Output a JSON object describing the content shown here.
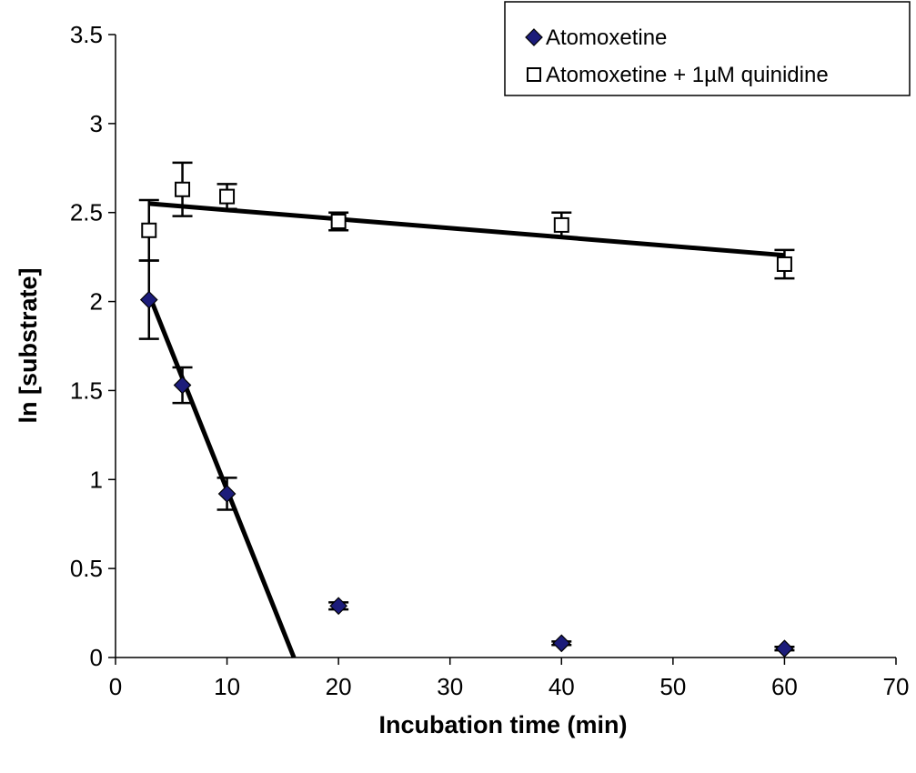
{
  "chart_data": {
    "type": "scatter",
    "title": "",
    "xlabel": "Incubation time (min)",
    "ylabel": "ln [substrate]",
    "xlim": [
      0,
      70
    ],
    "ylim": [
      0,
      3.5
    ],
    "x_ticks": [
      "0",
      "10",
      "20",
      "30",
      "40",
      "50",
      "60",
      "70"
    ],
    "y_ticks": [
      "0",
      "0.5",
      "1",
      "1.5",
      "2",
      "2.5",
      "3",
      "3.5"
    ],
    "grid": false,
    "legend_position": "top-right",
    "series": [
      {
        "name": "Atomoxetine",
        "marker": "filled-diamond",
        "color": "#1c1c7a",
        "points": [
          {
            "x": 3,
            "y": 2.01,
            "err": 0.22
          },
          {
            "x": 6,
            "y": 1.53,
            "err": 0.1
          },
          {
            "x": 10,
            "y": 0.92,
            "err": 0.09
          },
          {
            "x": 20,
            "y": 0.29,
            "err": 0.02
          },
          {
            "x": 40,
            "y": 0.08,
            "err": 0.01
          },
          {
            "x": 60,
            "y": 0.05,
            "err": 0.01
          }
        ],
        "trendline": {
          "x": [
            3,
            16
          ],
          "y": [
            2.04,
            0.0
          ]
        }
      },
      {
        "name": "Atomoxetine + 1µM quinidine",
        "marker": "open-square",
        "color": "#000000",
        "points": [
          {
            "x": 3,
            "y": 2.4,
            "err": 0.17
          },
          {
            "x": 6,
            "y": 2.63,
            "err": 0.15
          },
          {
            "x": 10,
            "y": 2.59,
            "err": 0.07
          },
          {
            "x": 20,
            "y": 2.45,
            "err": 0.05
          },
          {
            "x": 40,
            "y": 2.43,
            "err": 0.07
          },
          {
            "x": 60,
            "y": 2.21,
            "err": 0.08
          }
        ],
        "trendline": {
          "x": [
            3,
            60
          ],
          "y": [
            2.55,
            2.26
          ]
        }
      }
    ]
  }
}
